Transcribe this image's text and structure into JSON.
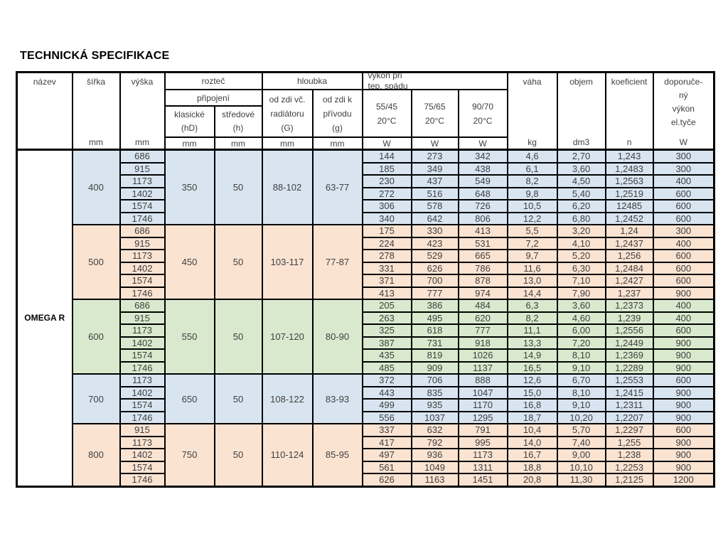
{
  "page": {
    "title": "TECHNICKÁ SPECIFIKACE"
  },
  "colors": {
    "blue": "#d8e5f1",
    "peach": "#fbe3d2",
    "green": "#d9e9cd",
    "border": "#000000",
    "text": "#3f3f3f"
  },
  "header": {
    "nazev": "název",
    "sirka": "šířka",
    "vyska": "výška",
    "roztec": "rozteč",
    "pripojeni": "připojení",
    "klasicke_l1": "klasické",
    "klasicke_l2": "(hD)",
    "stredove_l1": "středové",
    "stredove_l2": "(h)",
    "hloubka": "hloubka",
    "od_zdi_vc": [
      "od zdi  vč.",
      "radiátoru",
      "(G)"
    ],
    "od_zdi_k": [
      "od zdi  k",
      "přívodu",
      "(g)"
    ],
    "vykon_l1": "výkon při",
    "vykon_l2": "tep.  spádu",
    "temp_cols": [
      {
        "l1": "55/45",
        "l2": "20°C"
      },
      {
        "l1": "75/65",
        "l2": "20°C"
      },
      {
        "l1": "90/70",
        "l2": "20°C"
      }
    ],
    "vaha": "váha",
    "objem": "objem",
    "koeficient": "koeficient",
    "doporuceny": [
      "doporuče-",
      "ný",
      "výkon",
      "el.tyče"
    ],
    "units": {
      "mm": "mm",
      "w": "W",
      "kg": "kg",
      "dm3": "dm3",
      "n": "n"
    }
  },
  "product": "OMEGA R",
  "groups": [
    {
      "width": "400",
      "color": "blue",
      "klasicke": "350",
      "stredove": "50",
      "depth_G": "88-102",
      "depth_g": "63-77",
      "rows": [
        {
          "vyska": "686",
          "values": [
            "144",
            "273",
            "342",
            "4,6",
            "2,70",
            "1,243",
            "300"
          ]
        },
        {
          "vyska": "915",
          "values": [
            "185",
            "349",
            "438",
            "6,1",
            "3,60",
            "1,2483",
            "300"
          ]
        },
        {
          "vyska": "1173",
          "values": [
            "230",
            "437",
            "549",
            "8,2",
            "4,50",
            "1,2563",
            "400"
          ]
        },
        {
          "vyska": "1402",
          "values": [
            "272",
            "516",
            "648",
            "9,8",
            "5,40",
            "1,2519",
            "600"
          ]
        },
        {
          "vyska": "1574",
          "values": [
            "306",
            "578",
            "726",
            "10,5",
            "6,20",
            "12485",
            "600"
          ]
        },
        {
          "vyska": "1746",
          "values": [
            "340",
            "642",
            "806",
            "12,2",
            "6,80",
            "1,2452",
            "600"
          ]
        }
      ]
    },
    {
      "width": "500",
      "color": "peach",
      "klasicke": "450",
      "stredove": "50",
      "depth_G": "103-117",
      "depth_g": "77-87",
      "rows": [
        {
          "vyska": "686",
          "values": [
            "175",
            "330",
            "413",
            "5,5",
            "3,20",
            "1,24",
            "300"
          ]
        },
        {
          "vyska": "915",
          "values": [
            "224",
            "423",
            "531",
            "7,2",
            "4,10",
            "1,2437",
            "400"
          ]
        },
        {
          "vyska": "1173",
          "values": [
            "278",
            "529",
            "665",
            "9,7",
            "5,20",
            "1,256",
            "600"
          ]
        },
        {
          "vyska": "1402",
          "values": [
            "331",
            "626",
            "786",
            "11,6",
            "6,30",
            "1,2484",
            "600"
          ]
        },
        {
          "vyska": "1574",
          "values": [
            "371",
            "700",
            "878",
            "13,0",
            "7,10",
            "1,2427",
            "600"
          ]
        },
        {
          "vyska": "1746",
          "values": [
            "413",
            "777",
            "974",
            "14,4",
            "7,90",
            "1,237",
            "900"
          ]
        }
      ]
    },
    {
      "width": "600",
      "color": "green",
      "klasicke": "550",
      "stredove": "50",
      "depth_G": "107-120",
      "depth_g": "80-90",
      "rows": [
        {
          "vyska": "686",
          "values": [
            "205",
            "386",
            "484",
            "6,3",
            "3,60",
            "1,2373",
            "400"
          ]
        },
        {
          "vyska": "915",
          "values": [
            "263",
            "495",
            "620",
            "8,2",
            "4,60",
            "1,239",
            "400"
          ]
        },
        {
          "vyska": "1173",
          "values": [
            "325",
            "618",
            "777",
            "11,1",
            "6,00",
            "1,2556",
            "600"
          ]
        },
        {
          "vyska": "1402",
          "values": [
            "387",
            "731",
            "918",
            "13,3",
            "7,20",
            "1,2449",
            "900"
          ]
        },
        {
          "vyska": "1574",
          "values": [
            "435",
            "819",
            "1026",
            "14,9",
            "8,10",
            "1,2369",
            "900"
          ]
        },
        {
          "vyska": "1746",
          "values": [
            "485",
            "909",
            "1137",
            "16,5",
            "9,10",
            "1,2289",
            "900"
          ]
        }
      ]
    },
    {
      "width": "700",
      "color": "blue",
      "klasicke": "650",
      "stredove": "50",
      "depth_G": "108-122",
      "depth_g": "83-93",
      "rows": [
        {
          "vyska": "1173",
          "values": [
            "372",
            "706",
            "888",
            "12,6",
            "6,70",
            "1,2553",
            "600"
          ]
        },
        {
          "vyska": "1402",
          "values": [
            "443",
            "835",
            "1047",
            "15,0",
            "8,10",
            "1,2415",
            "900"
          ]
        },
        {
          "vyska": "1574",
          "values": [
            "499",
            "935",
            "1170",
            "16,8",
            "9,10",
            "1,2311",
            "900"
          ]
        },
        {
          "vyska": "1746",
          "values": [
            "556",
            "1037",
            "1295",
            "18,7",
            "10,20",
            "1,2207",
            "900"
          ]
        }
      ]
    },
    {
      "width": "800",
      "color": "peach",
      "klasicke": "750",
      "stredove": "50",
      "depth_G": "110-124",
      "depth_g": "85-95",
      "rows": [
        {
          "vyska": "915",
          "values": [
            "337",
            "632",
            "791",
            "10,4",
            "5,70",
            "1,2297",
            "600"
          ]
        },
        {
          "vyska": "1173",
          "values": [
            "417",
            "792",
            "995",
            "14,0",
            "7,40",
            "1,255",
            "900"
          ]
        },
        {
          "vyska": "1402",
          "values": [
            "497",
            "936",
            "1173",
            "16,7",
            "9,00",
            "1,238",
            "900"
          ]
        },
        {
          "vyska": "1574",
          "values": [
            "561",
            "1049",
            "1311",
            "18,8",
            "10,10",
            "1,2253",
            "900"
          ]
        },
        {
          "vyska": "1746",
          "values": [
            "626",
            "1163",
            "1451",
            "20,8",
            "11,30",
            "1,2125",
            "1200"
          ]
        }
      ]
    }
  ]
}
